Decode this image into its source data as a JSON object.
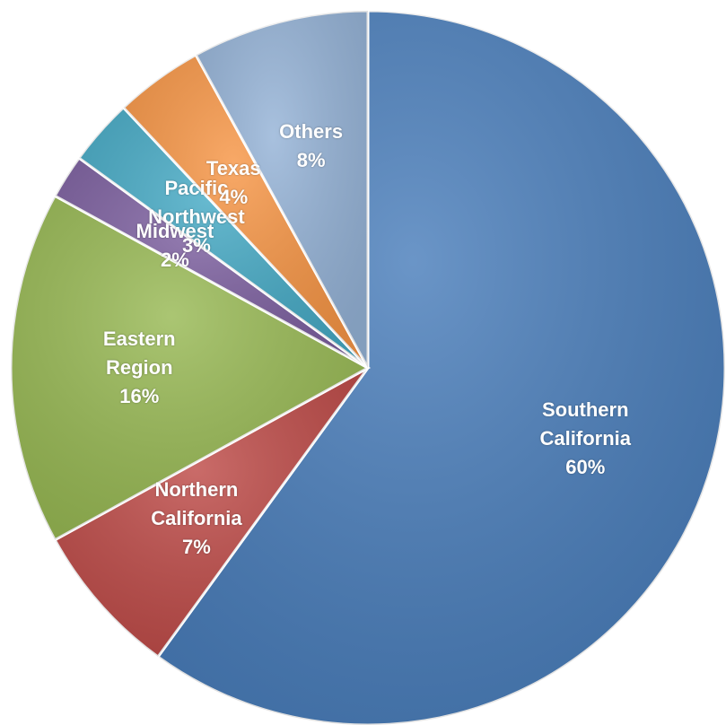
{
  "chart_data": {
    "type": "pie",
    "categories": [
      "Southern California",
      "Northern California",
      "Eastern Region",
      "Midwest",
      "Pacific Northwest",
      "Texas",
      "Others"
    ],
    "values": [
      60,
      7,
      16,
      2,
      3,
      4,
      8
    ],
    "value_labels": [
      "60%",
      "7%",
      "16%",
      "2%",
      "3%",
      "4%",
      "8%"
    ],
    "colors": [
      "#4a7ebb",
      "#be4b48",
      "#98b954",
      "#7d60a0",
      "#46aac5",
      "#f79646",
      "#95b3d7"
    ]
  }
}
